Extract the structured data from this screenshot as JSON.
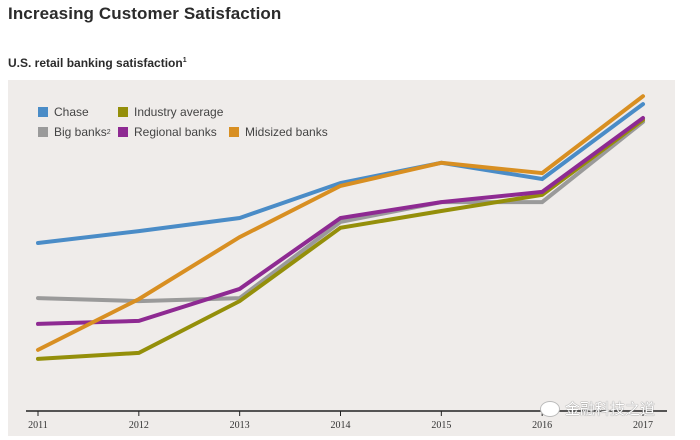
{
  "title": "Increasing Customer Satisfaction",
  "subtitle": "U.S. retail banking satisfaction",
  "subtitle_footnote": "1",
  "watermark": "金融科技之道",
  "chart_data": {
    "type": "line",
    "title": "U.S. retail banking satisfaction",
    "xlabel": "",
    "ylabel": "",
    "x": [
      "2011",
      "2012",
      "2013",
      "2014",
      "2015",
      "2016",
      "2017"
    ],
    "y_scale_note": "No y-axis shown; values are relative (0-100 arbitrary scale estimated from line positions)",
    "ylim": [
      0,
      100
    ],
    "grid": false,
    "legend_position": "top-left",
    "series": [
      {
        "name": "Chase",
        "footnote": "",
        "color": "#4a8cc7",
        "values": [
          50.9,
          54.5,
          58.5,
          69.1,
          75.2,
          70.3,
          93.0
        ]
      },
      {
        "name": "Industry average",
        "footnote": "",
        "color": "#948f0a",
        "values": [
          15.8,
          17.6,
          33.3,
          55.5,
          60.6,
          65.5,
          88.2
        ]
      },
      {
        "name": "Big banks",
        "footnote": "2",
        "color": "#9a9a9a",
        "values": [
          34.2,
          33.3,
          34.2,
          57.3,
          63.3,
          63.3,
          87.6
        ]
      },
      {
        "name": "Regional banks",
        "footnote": "",
        "color": "#8e2a92",
        "values": [
          26.4,
          27.3,
          37.0,
          58.5,
          63.3,
          66.4,
          88.8
        ]
      },
      {
        "name": "Midsized banks",
        "footnote": "",
        "color": "#d88f22",
        "values": [
          18.5,
          33.9,
          52.7,
          68.2,
          75.2,
          72.1,
          95.4
        ]
      }
    ]
  }
}
